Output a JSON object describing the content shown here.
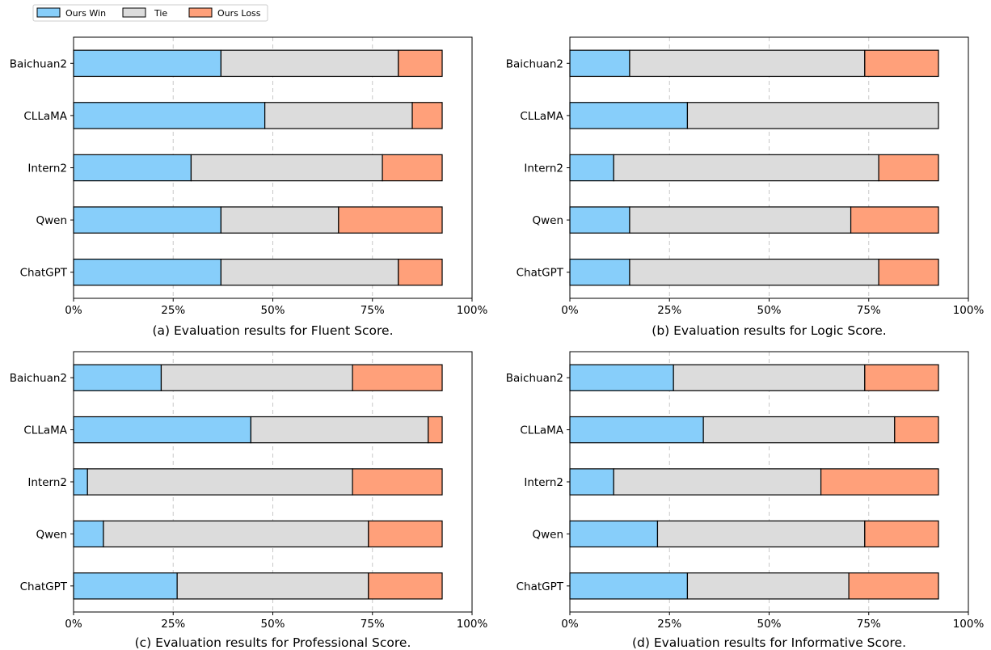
{
  "legend": {
    "items": [
      {
        "label": "Ours Win",
        "color": "#87CEFA"
      },
      {
        "label": "Tie",
        "color": "#DCDCDC"
      },
      {
        "label": "Ours Loss",
        "color": "#FFA07A"
      }
    ]
  },
  "chart_data": [
    {
      "type": "bar",
      "orientation": "horizontal",
      "stacked": true,
      "title": "(a) Evaluation results for Fluent Score.",
      "categories": [
        "Baichuan2",
        "CLLaMA",
        "Intern2",
        "Qwen",
        "ChatGPT"
      ],
      "series": [
        {
          "name": "Ours Win",
          "values": [
            37,
            48,
            29.5,
            37,
            37
          ]
        },
        {
          "name": "Tie",
          "values": [
            44.5,
            37,
            48,
            29.5,
            44.5
          ]
        },
        {
          "name": "Ours Loss",
          "values": [
            11,
            7.5,
            15,
            26,
            11
          ]
        }
      ],
      "xlim": [
        0,
        100
      ],
      "xticks": [
        "0%",
        "25%",
        "50%",
        "75%",
        "100%"
      ],
      "grid": "vertical dashed"
    },
    {
      "type": "bar",
      "orientation": "horizontal",
      "stacked": true,
      "title": "(b) Evaluation results for Logic Score.",
      "categories": [
        "Baichuan2",
        "CLLaMA",
        "Intern2",
        "Qwen",
        "ChatGPT"
      ],
      "series": [
        {
          "name": "Ours Win",
          "values": [
            15,
            29.5,
            11,
            15,
            15
          ]
        },
        {
          "name": "Tie",
          "values": [
            59,
            63,
            66.5,
            55.5,
            62.5
          ]
        },
        {
          "name": "Ours Loss",
          "values": [
            18.5,
            0,
            15,
            22,
            15
          ]
        }
      ],
      "xlim": [
        0,
        100
      ],
      "xticks": [
        "0%",
        "25%",
        "50%",
        "75%",
        "100%"
      ],
      "grid": "vertical dashed"
    },
    {
      "type": "bar",
      "orientation": "horizontal",
      "stacked": true,
      "title": "(c) Evaluation results for Professional Score.",
      "categories": [
        "Baichuan2",
        "CLLaMA",
        "Intern2",
        "Qwen",
        "ChatGPT"
      ],
      "series": [
        {
          "name": "Ours Win",
          "values": [
            22,
            44.5,
            3.5,
            7.5,
            26
          ]
        },
        {
          "name": "Tie",
          "values": [
            48,
            44.5,
            66.5,
            66.5,
            48
          ]
        },
        {
          "name": "Ours Loss",
          "values": [
            22.5,
            3.5,
            22.5,
            18.5,
            18.5
          ]
        }
      ],
      "xlim": [
        0,
        100
      ],
      "xticks": [
        "0%",
        "25%",
        "50%",
        "75%",
        "100%"
      ],
      "grid": "vertical dashed"
    },
    {
      "type": "bar",
      "orientation": "horizontal",
      "stacked": true,
      "title": "(d) Evaluation results for Informative Score.",
      "categories": [
        "Baichuan2",
        "CLLaMA",
        "Intern2",
        "Qwen",
        "ChatGPT"
      ],
      "series": [
        {
          "name": "Ours Win",
          "values": [
            26,
            33.5,
            11,
            22,
            29.5
          ]
        },
        {
          "name": "Tie",
          "values": [
            48,
            48,
            52,
            52,
            40.5
          ]
        },
        {
          "name": "Ours Loss",
          "values": [
            18.5,
            11,
            29.5,
            18.5,
            22.5
          ]
        }
      ],
      "xlim": [
        0,
        100
      ],
      "xticks": [
        "0%",
        "25%",
        "50%",
        "75%",
        "100%"
      ],
      "grid": "vertical dashed"
    }
  ]
}
